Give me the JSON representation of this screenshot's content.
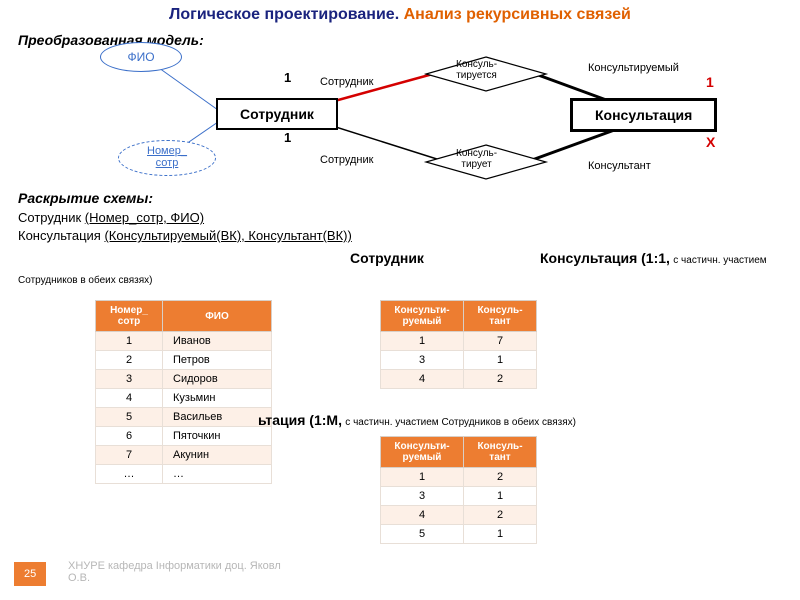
{
  "title": {
    "part1": "Логическое проектирование.",
    "part2": "Анализ рекурсивных связей"
  },
  "model_label": "Преобразованная модель:",
  "diagram": {
    "entity_employee": "Сотрудник",
    "entity_consultation": "Консультация",
    "attr_fio": "ФИО",
    "attr_num_line1": "Номер_",
    "attr_num_line2": "сотр",
    "rel_consults_line1": "Консуль-",
    "rel_consults_line2": "тируется",
    "rel_advises_line1": "Консуль-",
    "rel_advises_line2": "тирует",
    "role_employee": "Сотрудник",
    "role_consulted": "Консультируемый",
    "role_consultant": "Консультант",
    "card_one_top": "1",
    "card_one_bottom": "1",
    "card_right_1": "1",
    "card_right_x": "X",
    "colors": {
      "ellipse_border": "#3b6fc9",
      "red_line": "#d40000",
      "black": "#000000"
    }
  },
  "schema": {
    "heading": "Раскрытие схемы:",
    "line1_entity": "Сотрудник",
    "line1_attrs": "(Номер_сотр, ФИО)",
    "line2_entity": "Консультация",
    "line2_attrs": "(Консультируемый(ВК), Консультант(ВК))"
  },
  "rel11": {
    "left": "Сотрудник",
    "right": "Консультация (1:1,",
    "tail": "с частичн. участием"
  },
  "note_both": "Сотрудников в обеих связях)",
  "rel1m": {
    "text": "ьтация (1:M,",
    "tail": "с частичн. участием Сотрудников в обеих связях)"
  },
  "employees": {
    "headers": [
      "Номер_\nсотр",
      "ФИО"
    ],
    "rows": [
      [
        "1",
        "Иванов"
      ],
      [
        "2",
        "Петров"
      ],
      [
        "3",
        "Сидоров"
      ],
      [
        "4",
        "Кузьмин"
      ],
      [
        "5",
        "Васильев"
      ],
      [
        "6",
        "Пяточкин"
      ],
      [
        "7",
        "Акунин"
      ],
      [
        "…",
        "…"
      ]
    ],
    "col_widths": [
      "54px",
      "96px"
    ]
  },
  "cons11": {
    "headers": [
      "Консульти-\nруемый",
      "Консуль-\nтант"
    ],
    "rows": [
      [
        "1",
        "7"
      ],
      [
        "3",
        "1"
      ],
      [
        "4",
        "2"
      ]
    ]
  },
  "cons1m": {
    "headers": [
      "Консульти-\nруемый",
      "Консуль-\nтант"
    ],
    "rows": [
      [
        "1",
        "2"
      ],
      [
        "3",
        "1"
      ],
      [
        "4",
        "2"
      ],
      [
        "5",
        "1"
      ]
    ]
  },
  "footer": {
    "page": "25",
    "text": "ХНУРЕ кафедра Інформатики доц. Яковл\nО.В."
  }
}
